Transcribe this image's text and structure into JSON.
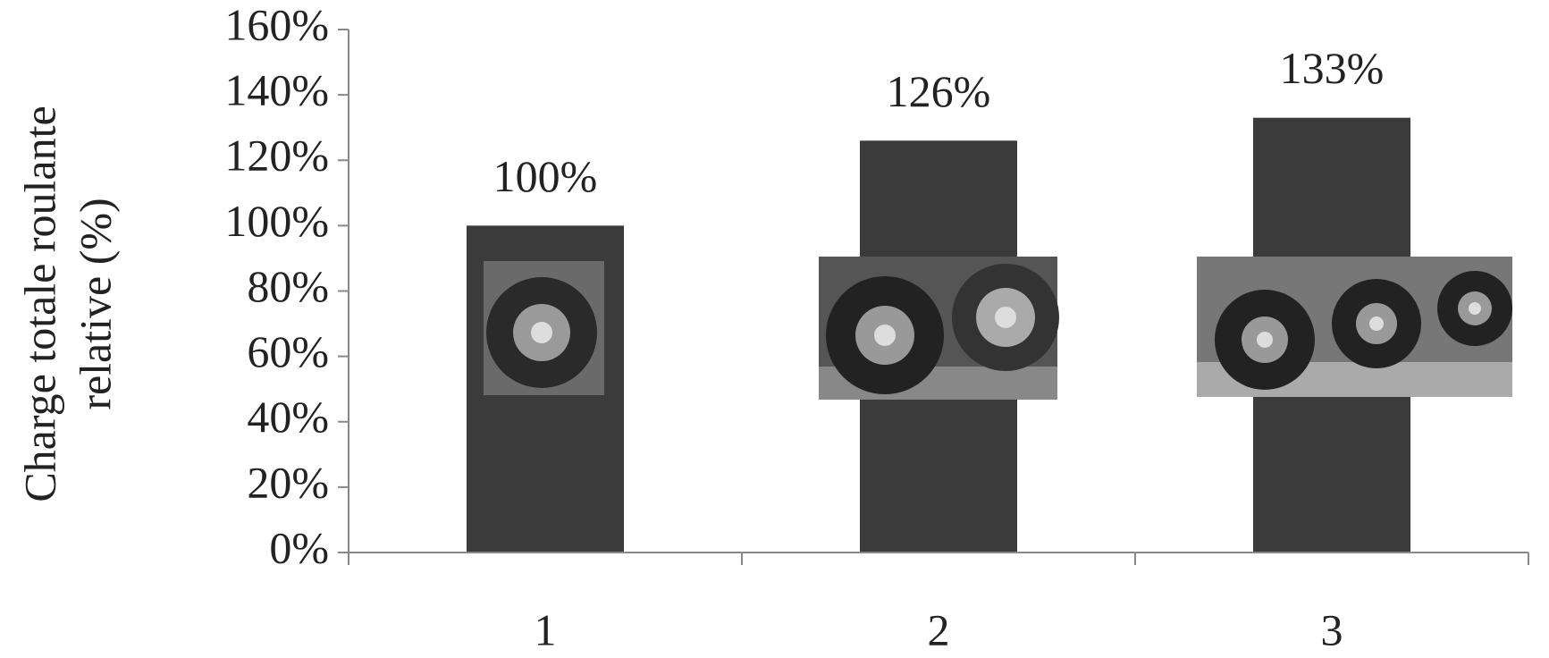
{
  "chart_data": {
    "type": "bar",
    "ylabel": [
      "Charge totale roulante",
      "relative (%)"
    ],
    "categories": [
      "1",
      "2",
      "3"
    ],
    "values": [
      100,
      126,
      133
    ],
    "value_labels": [
      "100%",
      "126%",
      "133%"
    ],
    "color": "#3b3b3b",
    "ylim": [
      0,
      160
    ],
    "yticks": [
      {
        "value": 0,
        "label": "0%"
      },
      {
        "value": 20,
        "label": "20%"
      },
      {
        "value": 40,
        "label": "40%"
      },
      {
        "value": 60,
        "label": "60%"
      },
      {
        "value": 80,
        "label": "80%"
      },
      {
        "value": 100,
        "label": "100%"
      },
      {
        "value": 120,
        "label": "120%"
      },
      {
        "value": 140,
        "label": "140%"
      },
      {
        "value": 160,
        "label": "160%"
      }
    ],
    "grid": false
  }
}
